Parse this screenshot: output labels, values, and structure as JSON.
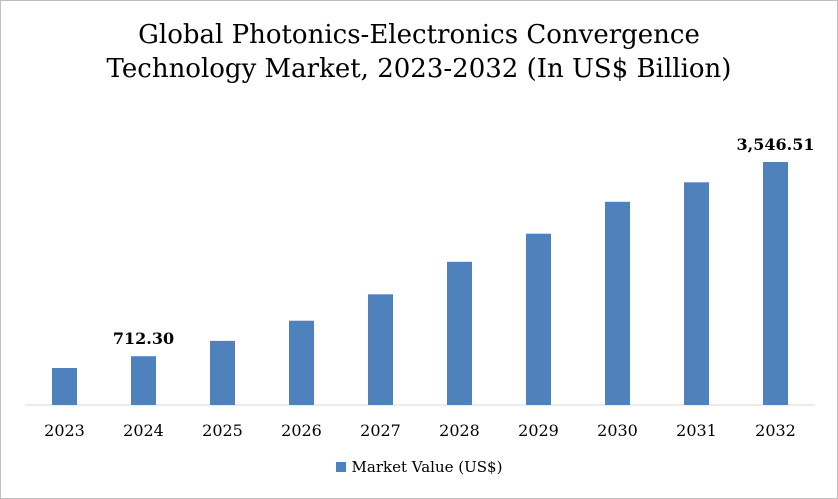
{
  "chart_data": {
    "type": "bar",
    "title": "Global Photonics-Electronics Convergence\nTechnology Market, 2023-2032 (In US$ Billion)",
    "xlabel": "",
    "ylabel": "",
    "categories": [
      "2023",
      "2024",
      "2025",
      "2026",
      "2027",
      "2028",
      "2029",
      "2030",
      "2031",
      "2032"
    ],
    "series": [
      {
        "name": "Market Value (US$)",
        "color": "#4f81bd",
        "values": [
          540,
          712.3,
          935,
          1230,
          1615,
          2090,
          2500,
          2965,
          3250,
          3546.51
        ],
        "data_labels": [
          "",
          "712.30",
          "",
          "",
          "",
          "",
          "",
          "",
          "",
          "3,546.51"
        ]
      }
    ],
    "ylim": [
      0,
      3546.51
    ],
    "y_axis_visible": false,
    "grid": false,
    "legend": "bottom"
  }
}
